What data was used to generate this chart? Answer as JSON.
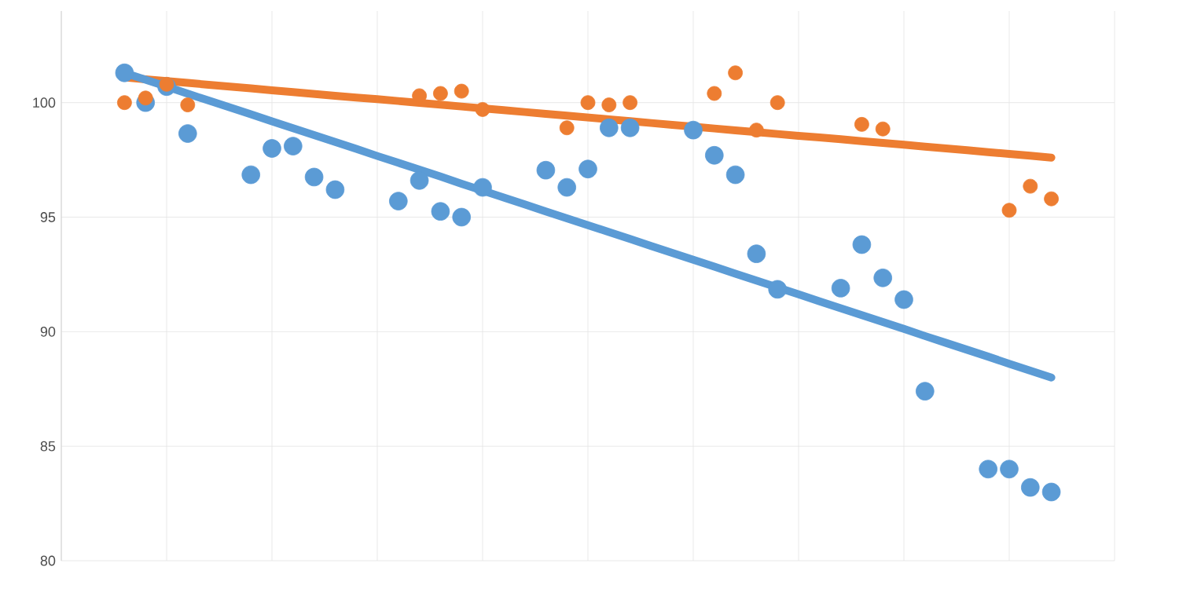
{
  "chart_data": {
    "type": "scatter",
    "categories": [
      null,
      null,
      null,
      null,
      null,
      null,
      null,
      null,
      null,
      null,
      null,
      null,
      null,
      null,
      null,
      null,
      null,
      null,
      null,
      null,
      null,
      null,
      null,
      null,
      null,
      null,
      null,
      null,
      null,
      null,
      null,
      null,
      null,
      null,
      null,
      null,
      null,
      null,
      null,
      null,
      null,
      null,
      null,
      null,
      null,
      null,
      null,
      null,
      null,
      null,
      null
    ],
    "ylim": [
      80,
      104
    ],
    "yticks": [
      80,
      85,
      90,
      95,
      100
    ],
    "grid": true,
    "series": [
      {
        "marker": "circle",
        "color": "#5b9bd5",
        "values": [
          null,
          null,
          null,
          101.3,
          100.0,
          100.7,
          98.65,
          null,
          null,
          96.85,
          98.0,
          98.1,
          96.75,
          96.2,
          null,
          null,
          95.7,
          96.6,
          95.25,
          95.0,
          96.3,
          null,
          null,
          97.05,
          96.3,
          97.1,
          98.9,
          98.9,
          null,
          null,
          98.8,
          97.7,
          96.85,
          93.4,
          91.85,
          null,
          null,
          91.9,
          93.8,
          92.35,
          91.4,
          87.4,
          null,
          null,
          84.0,
          84.0,
          83.2,
          83.0,
          null,
          null,
          null
        ]
      },
      {
        "marker": "circle",
        "color": "#ed7d31",
        "values": [
          null,
          null,
          null,
          100.0,
          100.2,
          100.8,
          99.9,
          null,
          null,
          null,
          null,
          null,
          null,
          null,
          null,
          null,
          null,
          100.3,
          100.4,
          100.5,
          99.7,
          null,
          null,
          null,
          98.9,
          100.0,
          99.9,
          100.0,
          null,
          null,
          null,
          100.4,
          101.3,
          98.8,
          100.0,
          null,
          null,
          null,
          99.05,
          98.85,
          null,
          null,
          null,
          null,
          null,
          95.3,
          96.35,
          95.8,
          null,
          null,
          null
        ]
      },
      {
        "type": "line",
        "marker": "none",
        "color": "#ed7d31",
        "values": [
          null,
          null,
          null,
          101.1,
          101.02,
          100.94,
          100.86,
          100.78,
          100.7,
          100.62,
          100.54,
          100.46,
          100.38,
          100.3,
          100.22,
          100.15,
          100.07,
          99.99,
          99.91,
          99.83,
          99.75,
          99.67,
          99.59,
          99.51,
          99.43,
          99.35,
          99.27,
          99.19,
          99.11,
          99.03,
          98.95,
          98.87,
          98.79,
          98.71,
          98.63,
          98.55,
          98.48,
          98.4,
          98.32,
          98.24,
          98.16,
          98.08,
          98.0,
          97.92,
          97.84,
          97.76,
          97.68,
          97.6,
          null,
          null,
          null
        ]
      },
      {
        "type": "line",
        "marker": "none",
        "color": "#5b9bd5",
        "values": [
          null,
          null,
          null,
          101.3,
          101.0,
          100.7,
          100.39,
          100.09,
          99.79,
          99.49,
          99.18,
          98.88,
          98.58,
          98.28,
          97.98,
          97.67,
          97.37,
          97.07,
          96.77,
          96.46,
          96.16,
          95.86,
          95.56,
          95.25,
          94.95,
          94.65,
          94.35,
          94.05,
          93.74,
          93.44,
          93.14,
          92.84,
          92.53,
          92.23,
          91.93,
          91.63,
          91.32,
          91.02,
          90.72,
          90.42,
          90.12,
          89.81,
          89.51,
          89.21,
          88.91,
          88.6,
          88.3,
          88.0,
          null,
          null,
          null
        ]
      }
    ]
  }
}
